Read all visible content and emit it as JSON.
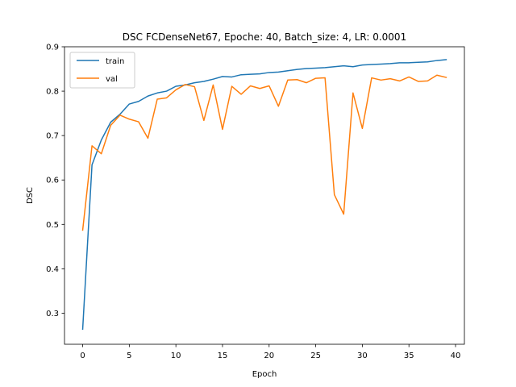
{
  "chart_data": {
    "type": "line",
    "title": "DSC FCDenseNet67, Epoche: 40, Batch_size: 4, LR: 0.0001",
    "xlabel": "Epoch",
    "ylabel": "DSC",
    "xlim": [
      -1.95,
      40.95
    ],
    "ylim": [
      0.23,
      0.9
    ],
    "xticks": [
      0,
      5,
      10,
      15,
      20,
      25,
      30,
      35,
      40
    ],
    "yticks": [
      0.3,
      0.4,
      0.5,
      0.6,
      0.7,
      0.8,
      0.9
    ],
    "legend_position": "upper-left",
    "x": [
      0,
      1,
      2,
      3,
      4,
      5,
      6,
      7,
      8,
      9,
      10,
      11,
      12,
      13,
      14,
      15,
      16,
      17,
      18,
      19,
      20,
      21,
      22,
      23,
      24,
      25,
      26,
      27,
      28,
      29,
      30,
      31,
      32,
      33,
      34,
      35,
      36,
      37,
      38,
      39
    ],
    "series": [
      {
        "name": "train",
        "color": "#1f77b4",
        "values": [
          0.264,
          0.634,
          0.69,
          0.73,
          0.748,
          0.771,
          0.777,
          0.789,
          0.796,
          0.8,
          0.811,
          0.814,
          0.819,
          0.822,
          0.827,
          0.833,
          0.832,
          0.837,
          0.838,
          0.839,
          0.842,
          0.843,
          0.846,
          0.849,
          0.851,
          0.852,
          0.853,
          0.855,
          0.857,
          0.855,
          0.859,
          0.86,
          0.861,
          0.862,
          0.864,
          0.864,
          0.865,
          0.866,
          0.869,
          0.871
        ]
      },
      {
        "name": "val",
        "color": "#ff7f0e",
        "values": [
          0.487,
          0.677,
          0.659,
          0.723,
          0.746,
          0.737,
          0.731,
          0.694,
          0.782,
          0.785,
          0.803,
          0.815,
          0.81,
          0.734,
          0.814,
          0.714,
          0.811,
          0.793,
          0.812,
          0.806,
          0.812,
          0.766,
          0.825,
          0.826,
          0.819,
          0.829,
          0.83,
          0.567,
          0.523,
          0.796,
          0.716,
          0.83,
          0.825,
          0.828,
          0.823,
          0.832,
          0.822,
          0.823,
          0.836,
          0.831
        ]
      }
    ]
  }
}
